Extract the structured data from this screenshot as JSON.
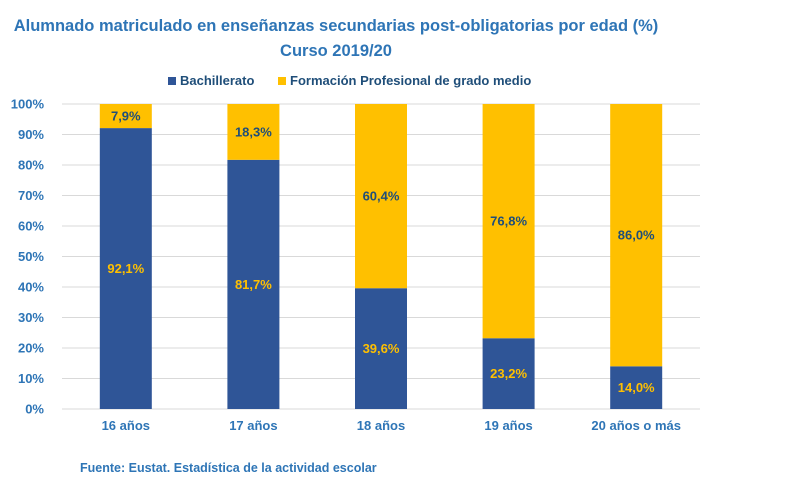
{
  "chart_data": {
    "type": "bar",
    "stacked": true,
    "title": "Alumnado matriculado en enseñanzas secundarias post-obligatorias por edad (%)",
    "subtitle": "Curso 2019/20",
    "categories": [
      "16 años",
      "17 años",
      "18 años",
      "19 años",
      "20 años o más"
    ],
    "series": [
      {
        "name": "Bachillerato",
        "color": "#2f5597",
        "label_color": "#ffc000",
        "values": [
          92.1,
          81.7,
          39.6,
          23.2,
          14.0
        ],
        "labels": [
          "92,1%",
          "81,7%",
          "39,6%",
          "23,2%",
          "14,0%"
        ]
      },
      {
        "name": "Formación Profesional de grado medio",
        "color": "#ffc000",
        "label_color": "#1f4e79",
        "values": [
          7.9,
          18.3,
          60.4,
          76.8,
          86.0
        ],
        "labels": [
          "7,9%",
          "18,3%",
          "60,4%",
          "76,8%",
          "86,0%"
        ]
      }
    ],
    "ylim": [
      0,
      100
    ],
    "yticks": [
      "0%",
      "10%",
      "20%",
      "30%",
      "40%",
      "50%",
      "60%",
      "70%",
      "80%",
      "90%",
      "100%"
    ],
    "grid": true,
    "legend_position": "top",
    "xlabel": "",
    "ylabel": ""
  },
  "source": "Fuente: Eustat. Estadística de la actividad escolar"
}
